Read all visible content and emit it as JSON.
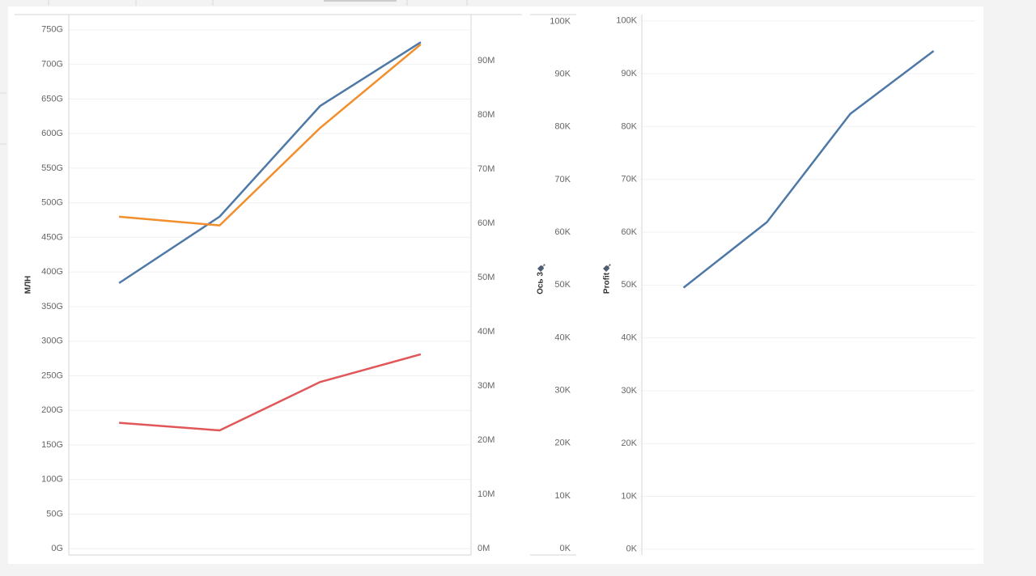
{
  "chart_data": [
    {
      "type": "line",
      "ylabel": "МЛН",
      "categories": [
        null,
        null,
        null,
        null
      ],
      "ylim": [
        -9,
        772
      ],
      "yticks": [
        {
          "value": 0,
          "label": "0G"
        },
        {
          "value": 50,
          "label": "50G"
        },
        {
          "value": 100,
          "label": "100G"
        },
        {
          "value": 150,
          "label": "150G"
        },
        {
          "value": 200,
          "label": "200G"
        },
        {
          "value": 250,
          "label": "250G"
        },
        {
          "value": 300,
          "label": "300G"
        },
        {
          "value": 350,
          "label": "350G"
        },
        {
          "value": 400,
          "label": "400G"
        },
        {
          "value": 450,
          "label": "450G"
        },
        {
          "value": 500,
          "label": "500G"
        },
        {
          "value": 550,
          "label": "550G"
        },
        {
          "value": 600,
          "label": "600G"
        },
        {
          "value": 650,
          "label": "650G"
        },
        {
          "value": 700,
          "label": "700G"
        },
        {
          "value": 750,
          "label": "750G"
        }
      ],
      "y2lim": [
        -1.2,
        98.5
      ],
      "y2ticks": [
        {
          "value": 0,
          "label": "0M"
        },
        {
          "value": 10,
          "label": "10M"
        },
        {
          "value": 20,
          "label": "20M"
        },
        {
          "value": 30,
          "label": "30M"
        },
        {
          "value": 40,
          "label": "40M"
        },
        {
          "value": 50,
          "label": "50M"
        },
        {
          "value": 60,
          "label": "60M"
        },
        {
          "value": 70,
          "label": "70M"
        },
        {
          "value": 80,
          "label": "80M"
        },
        {
          "value": 90,
          "label": "90M"
        }
      ],
      "grid": true,
      "series": [
        {
          "color": "#4e79a7",
          "values": [
            384,
            480,
            640,
            732
          ]
        },
        {
          "color": "#f28e2b",
          "axis": "y2",
          "values": [
            61.2,
            59.6,
            77.6,
            93.0
          ]
        },
        {
          "color": "#e15759",
          "values": [
            182,
            171,
            241,
            281
          ]
        }
      ]
    },
    {
      "type": "axis",
      "ylabel": "Ось 3",
      "ylim": [
        -1.2,
        101.3
      ],
      "yticks": [
        {
          "value": 0,
          "label": "0K"
        },
        {
          "value": 10,
          "label": "10K"
        },
        {
          "value": 20,
          "label": "20K"
        },
        {
          "value": 30,
          "label": "30K"
        },
        {
          "value": 40,
          "label": "40K"
        },
        {
          "value": 50,
          "label": "50K"
        },
        {
          "value": 60,
          "label": "60K"
        },
        {
          "value": 70,
          "label": "70K"
        },
        {
          "value": 80,
          "label": "80K"
        },
        {
          "value": 90,
          "label": "90K"
        },
        {
          "value": 100,
          "label": "100K"
        }
      ]
    },
    {
      "type": "line",
      "ylabel": "Profit",
      "categories": [
        null,
        null,
        null,
        null
      ],
      "ylim": [
        -1.1,
        101.2
      ],
      "yticks": [
        {
          "value": 0,
          "label": "0K"
        },
        {
          "value": 10,
          "label": "10K"
        },
        {
          "value": 20,
          "label": "20K"
        },
        {
          "value": 30,
          "label": "30K"
        },
        {
          "value": 40,
          "label": "40K"
        },
        {
          "value": 50,
          "label": "50K"
        },
        {
          "value": 60,
          "label": "60K"
        },
        {
          "value": 70,
          "label": "70K"
        },
        {
          "value": 80,
          "label": "80K"
        },
        {
          "value": 90,
          "label": "90K"
        },
        {
          "value": 100,
          "label": "100K"
        }
      ],
      "grid": true,
      "series": [
        {
          "color": "#4e79a7",
          "values": [
            49.5,
            61.9,
            82.4,
            94.3
          ]
        }
      ]
    }
  ]
}
